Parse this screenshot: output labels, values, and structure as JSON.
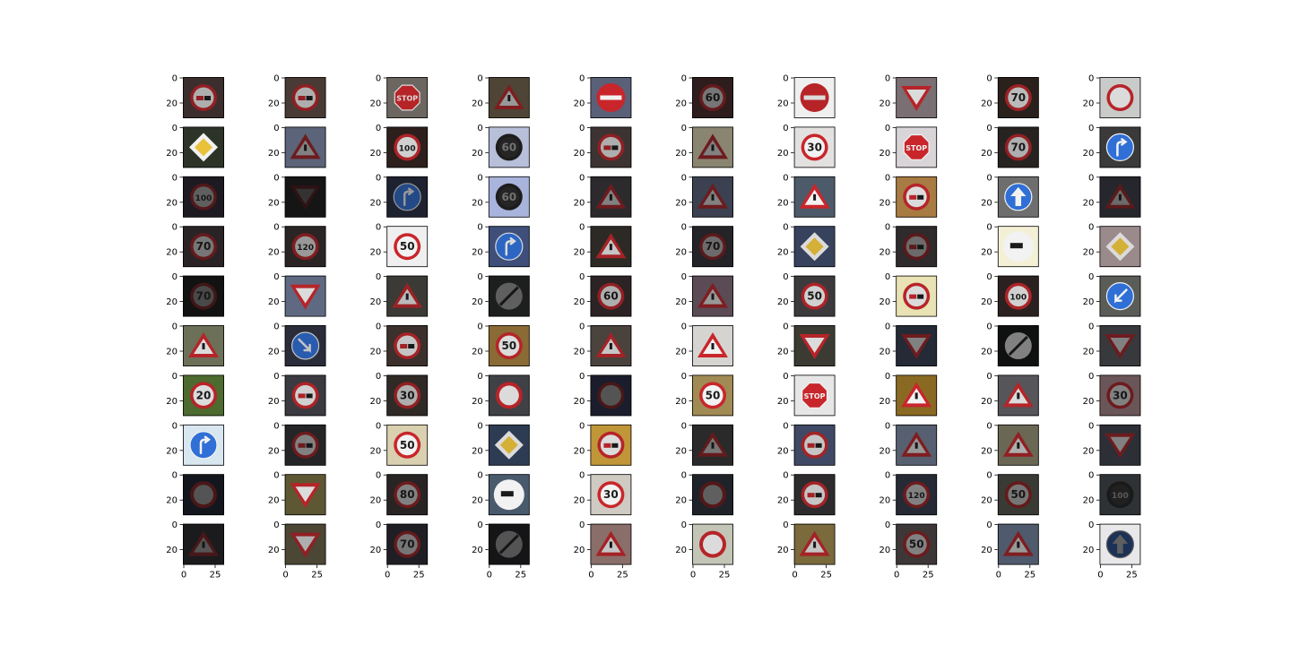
{
  "figure": {
    "y_tick_labels": [
      "0",
      "20"
    ],
    "x_tick_labels": [
      "0",
      "25"
    ],
    "colors": {
      "frame": "#000000",
      "sign_red": "#c8262b",
      "sign_blue": "#2f6fd6",
      "sign_white": "#f2f2f2",
      "sign_yellow": "#e9c23a"
    },
    "grid": [
      [
        {
          "sign": "no-trucks-passing",
          "bg": "#3b2e2c",
          "b": 0.7,
          "text": ""
        },
        {
          "sign": "no-trucks-passing",
          "bg": "#4a3a35",
          "b": 0.7,
          "text": ""
        },
        {
          "sign": "stop",
          "bg": "#6b6660",
          "b": 0.9,
          "text": "STOP"
        },
        {
          "sign": "warning",
          "bg": "#4e4536",
          "b": 0.6,
          "text": ""
        },
        {
          "sign": "no-entry",
          "bg": "#5a6078",
          "b": 1.0,
          "text": ""
        },
        {
          "sign": "speed",
          "bg": "#2e1d1c",
          "b": 0.45,
          "text": "60"
        },
        {
          "sign": "no-entry",
          "bg": "#efefef",
          "b": 0.9,
          "text": ""
        },
        {
          "sign": "yield",
          "bg": "#7a6f72",
          "b": 0.9,
          "text": ""
        },
        {
          "sign": "speed",
          "bg": "#2a201c",
          "b": 0.75,
          "text": "70"
        },
        {
          "sign": "speed",
          "bg": "#c9cbc8",
          "b": 0.9,
          "text": ""
        }
      ],
      [
        {
          "sign": "priority",
          "bg": "#2e3328",
          "b": 1.0,
          "text": ""
        },
        {
          "sign": "warning",
          "bg": "#5b6478",
          "b": 0.5,
          "text": ""
        },
        {
          "sign": "speed",
          "bg": "#2c1f1c",
          "b": 0.85,
          "text": "100"
        },
        {
          "sign": "speed-dark",
          "bg": "#b7bfd9",
          "b": 0.8,
          "text": "60"
        },
        {
          "sign": "no-trucks-passing",
          "bg": "#3d3332",
          "b": 0.7,
          "text": ""
        },
        {
          "sign": "warning",
          "bg": "#8a8570",
          "b": 0.5,
          "text": ""
        },
        {
          "sign": "speed",
          "bg": "#e3e1df",
          "b": 1.0,
          "text": "30"
        },
        {
          "sign": "stop",
          "bg": "#d8d4d7",
          "b": 1.0,
          "text": "STOP"
        },
        {
          "sign": "speed",
          "bg": "#272321",
          "b": 0.7,
          "text": "70"
        },
        {
          "sign": "turn-right",
          "bg": "#3a3a3a",
          "b": 1.0,
          "text": ""
        }
      ],
      [
        {
          "sign": "speed",
          "bg": "#1d1a22",
          "b": 0.35,
          "text": "100"
        },
        {
          "sign": "yield",
          "bg": "#151515",
          "b": 0.15,
          "text": ""
        },
        {
          "sign": "straight-left",
          "bg": "#1e2230",
          "b": 0.6,
          "text": ""
        },
        {
          "sign": "speed-dark",
          "bg": "#a9b4dc",
          "b": 0.8,
          "text": "60"
        },
        {
          "sign": "warning",
          "bg": "#2c2a2d",
          "b": 0.5,
          "text": ""
        },
        {
          "sign": "warning",
          "bg": "#3b4150",
          "b": 0.5,
          "text": ""
        },
        {
          "sign": "warning",
          "bg": "#4d5a6a",
          "b": 1.0,
          "text": ""
        },
        {
          "sign": "no-trucks-passing",
          "bg": "#a87b43",
          "b": 0.9,
          "text": ""
        },
        {
          "sign": "ahead-only",
          "bg": "#6e6e6e",
          "b": 1.0,
          "text": ""
        },
        {
          "sign": "warning",
          "bg": "#25272c",
          "b": 0.4,
          "text": ""
        }
      ],
      [
        {
          "sign": "speed",
          "bg": "#2a2325",
          "b": 0.45,
          "text": "70"
        },
        {
          "sign": "speed",
          "bg": "#2b2424",
          "b": 0.6,
          "text": "120"
        },
        {
          "sign": "speed",
          "bg": "#efefef",
          "b": 1.0,
          "text": "50"
        },
        {
          "sign": "roundabout",
          "bg": "#3f4f79",
          "b": 0.9,
          "text": ""
        },
        {
          "sign": "warning",
          "bg": "#2d2a25",
          "b": 0.8,
          "text": ""
        },
        {
          "sign": "speed",
          "bg": "#242327",
          "b": 0.4,
          "text": "70"
        },
        {
          "sign": "priority",
          "bg": "#37425c",
          "b": 0.9,
          "text": ""
        },
        {
          "sign": "no-trucks-passing",
          "bg": "#2f2a2c",
          "b": 0.4,
          "text": ""
        },
        {
          "sign": "truck-end",
          "bg": "#f3f0d6",
          "b": 1.0,
          "text": ""
        },
        {
          "sign": "priority",
          "bg": "#9a8a8c",
          "b": 0.9,
          "text": ""
        }
      ],
      [
        {
          "sign": "speed",
          "bg": "#121212",
          "b": 0.25,
          "text": "70"
        },
        {
          "sign": "yield",
          "bg": "#5f6a82",
          "b": 0.9,
          "text": ""
        },
        {
          "sign": "warning",
          "bg": "#3b3a36",
          "b": 0.75,
          "text": ""
        },
        {
          "sign": "end-restriction",
          "bg": "#1c1f1d",
          "b": 0.35,
          "text": ""
        },
        {
          "sign": "speed",
          "bg": "#2b2324",
          "b": 0.7,
          "text": "60"
        },
        {
          "sign": "warning",
          "bg": "#5b4b55",
          "b": 0.6,
          "text": ""
        },
        {
          "sign": "speed",
          "bg": "#3d3a3d",
          "b": 0.85,
          "text": "50"
        },
        {
          "sign": "no-trucks-passing",
          "bg": "#e9e2b4",
          "b": 0.9,
          "text": ""
        },
        {
          "sign": "speed",
          "bg": "#2b2120",
          "b": 0.85,
          "text": "100"
        },
        {
          "sign": "keep-left",
          "bg": "#5a5c58",
          "b": 1.0,
          "text": ""
        }
      ],
      [
        {
          "sign": "warning",
          "bg": "#6c7058",
          "b": 0.9,
          "text": ""
        },
        {
          "sign": "keep-right",
          "bg": "#2a2c3a",
          "b": 0.8,
          "text": ""
        },
        {
          "sign": "no-trucks-passing",
          "bg": "#3b302b",
          "b": 0.8,
          "text": ""
        },
        {
          "sign": "speed",
          "bg": "#8a6a35",
          "b": 0.9,
          "text": "50"
        },
        {
          "sign": "warning",
          "bg": "#4a423d",
          "b": 0.8,
          "text": ""
        },
        {
          "sign": "warning",
          "bg": "#d6d4d1",
          "b": 1.0,
          "text": ""
        },
        {
          "sign": "yield",
          "bg": "#3c3b33",
          "b": 0.9,
          "text": ""
        },
        {
          "sign": "yield",
          "bg": "#242a36",
          "b": 0.5,
          "text": ""
        },
        {
          "sign": "end-restriction",
          "bg": "#0f1010",
          "b": 0.5,
          "text": ""
        },
        {
          "sign": "yield",
          "bg": "#38393c",
          "b": 0.5,
          "text": ""
        }
      ],
      [
        {
          "sign": "speed",
          "bg": "#4d6a2f",
          "b": 0.9,
          "text": "20"
        },
        {
          "sign": "no-trucks-passing",
          "bg": "#3b3a40",
          "b": 0.85,
          "text": ""
        },
        {
          "sign": "speed",
          "bg": "#302a27",
          "b": 0.7,
          "text": "30"
        },
        {
          "sign": "no-vehicles",
          "bg": "#3f4146",
          "b": 0.9,
          "text": ""
        },
        {
          "sign": "speed",
          "bg": "#1c1d2c",
          "b": 0.3,
          "text": ""
        },
        {
          "sign": "speed",
          "bg": "#a18b54",
          "b": 1.0,
          "text": "50"
        },
        {
          "sign": "stop",
          "bg": "#e6e6e6",
          "b": 1.0,
          "text": "STOP"
        },
        {
          "sign": "warning",
          "bg": "#8a6a22",
          "b": 1.0,
          "text": ""
        },
        {
          "sign": "warning",
          "bg": "#55555a",
          "b": 0.9,
          "text": ""
        },
        {
          "sign": "speed",
          "bg": "#6a5658",
          "b": 0.5,
          "text": "30"
        }
      ],
      [
        {
          "sign": "turn-right",
          "bg": "#d8e6f0",
          "b": 1.0,
          "text": ""
        },
        {
          "sign": "no-trucks-passing",
          "bg": "#252527",
          "b": 0.5,
          "text": ""
        },
        {
          "sign": "speed",
          "bg": "#d9d0b0",
          "b": 1.0,
          "text": "50"
        },
        {
          "sign": "priority",
          "bg": "#2d3c52",
          "b": 0.9,
          "text": ""
        },
        {
          "sign": "no-trucks-passing",
          "bg": "#c09638",
          "b": 0.9,
          "text": ""
        },
        {
          "sign": "warning",
          "bg": "#2a2a2a",
          "b": 0.45,
          "text": ""
        },
        {
          "sign": "no-trucks-passing",
          "bg": "#3f4965",
          "b": 0.8,
          "text": ""
        },
        {
          "sign": "warning",
          "bg": "#576070",
          "b": 0.6,
          "text": ""
        },
        {
          "sign": "warning",
          "bg": "#6a6755",
          "b": 0.7,
          "text": ""
        },
        {
          "sign": "yield",
          "bg": "#2d2f36",
          "b": 0.5,
          "text": ""
        }
      ],
      [
        {
          "sign": "no-vehicles",
          "bg": "#14161d",
          "b": 0.3,
          "text": ""
        },
        {
          "sign": "yield",
          "bg": "#5e5733",
          "b": 0.9,
          "text": ""
        },
        {
          "sign": "speed",
          "bg": "#292424",
          "b": 0.5,
          "text": "80"
        },
        {
          "sign": "truck-end",
          "bg": "#4a5a6d",
          "b": 1.0,
          "text": ""
        },
        {
          "sign": "speed",
          "bg": "#cfcac2",
          "b": 1.0,
          "text": "30"
        },
        {
          "sign": "no-vehicles",
          "bg": "#20222a",
          "b": 0.35,
          "text": ""
        },
        {
          "sign": "no-trucks-passing",
          "bg": "#2d2b2e",
          "b": 0.8,
          "text": ""
        },
        {
          "sign": "speed",
          "bg": "#262a34",
          "b": 0.5,
          "text": "120"
        },
        {
          "sign": "speed",
          "bg": "#393a33",
          "b": 0.45,
          "text": "50"
        },
        {
          "sign": "speed-dark",
          "bg": "#2f3235",
          "b": 0.6,
          "text": "100"
        }
      ],
      [
        {
          "sign": "warning",
          "bg": "#1b1b1e",
          "b": 0.3,
          "text": ""
        },
        {
          "sign": "yield",
          "bg": "#4c4634",
          "b": 0.7,
          "text": ""
        },
        {
          "sign": "speed",
          "bg": "#1f1e24",
          "b": 0.45,
          "text": "70"
        },
        {
          "sign": "end-restriction",
          "bg": "#151517",
          "b": 0.3,
          "text": ""
        },
        {
          "sign": "warning",
          "bg": "#8a6e6a",
          "b": 0.8,
          "text": ""
        },
        {
          "sign": "no-vehicles",
          "bg": "#c3c6b6",
          "b": 0.9,
          "text": ""
        },
        {
          "sign": "warning",
          "bg": "#7a6a3c",
          "b": 0.8,
          "text": ""
        },
        {
          "sign": "speed",
          "bg": "#3d3737",
          "b": 0.5,
          "text": "50"
        },
        {
          "sign": "warning",
          "bg": "#4f5a6c",
          "b": 0.6,
          "text": ""
        },
        {
          "sign": "ahead-only",
          "bg": "#e8e8ea",
          "b": 0.35,
          "text": ""
        }
      ]
    ]
  }
}
